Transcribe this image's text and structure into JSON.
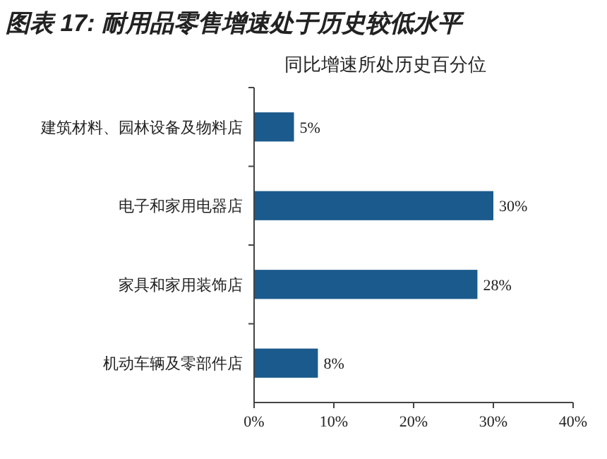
{
  "chart_data": {
    "type": "bar",
    "orientation": "horizontal",
    "title": "图表 17: 耐用品零售增速处于历史较低水平",
    "subtitle": "同比增速所处历史百分位",
    "categories": [
      "建筑材料、园林设备及物料店",
      "电子和家用电器店",
      "家具和家用装饰店",
      "机动车辆及零部件店"
    ],
    "values": [
      5,
      30,
      28,
      8
    ],
    "value_labels": [
      "5%",
      "30%",
      "28%",
      "8%"
    ],
    "color": "#1b5a8c",
    "xlim": [
      0,
      40
    ],
    "xticks": [
      {
        "value": 0,
        "label": "0%"
      },
      {
        "value": 10,
        "label": "10%"
      },
      {
        "value": 20,
        "label": "20%"
      },
      {
        "value": 30,
        "label": "30%"
      },
      {
        "value": 40,
        "label": "40%"
      }
    ],
    "grid": false
  }
}
